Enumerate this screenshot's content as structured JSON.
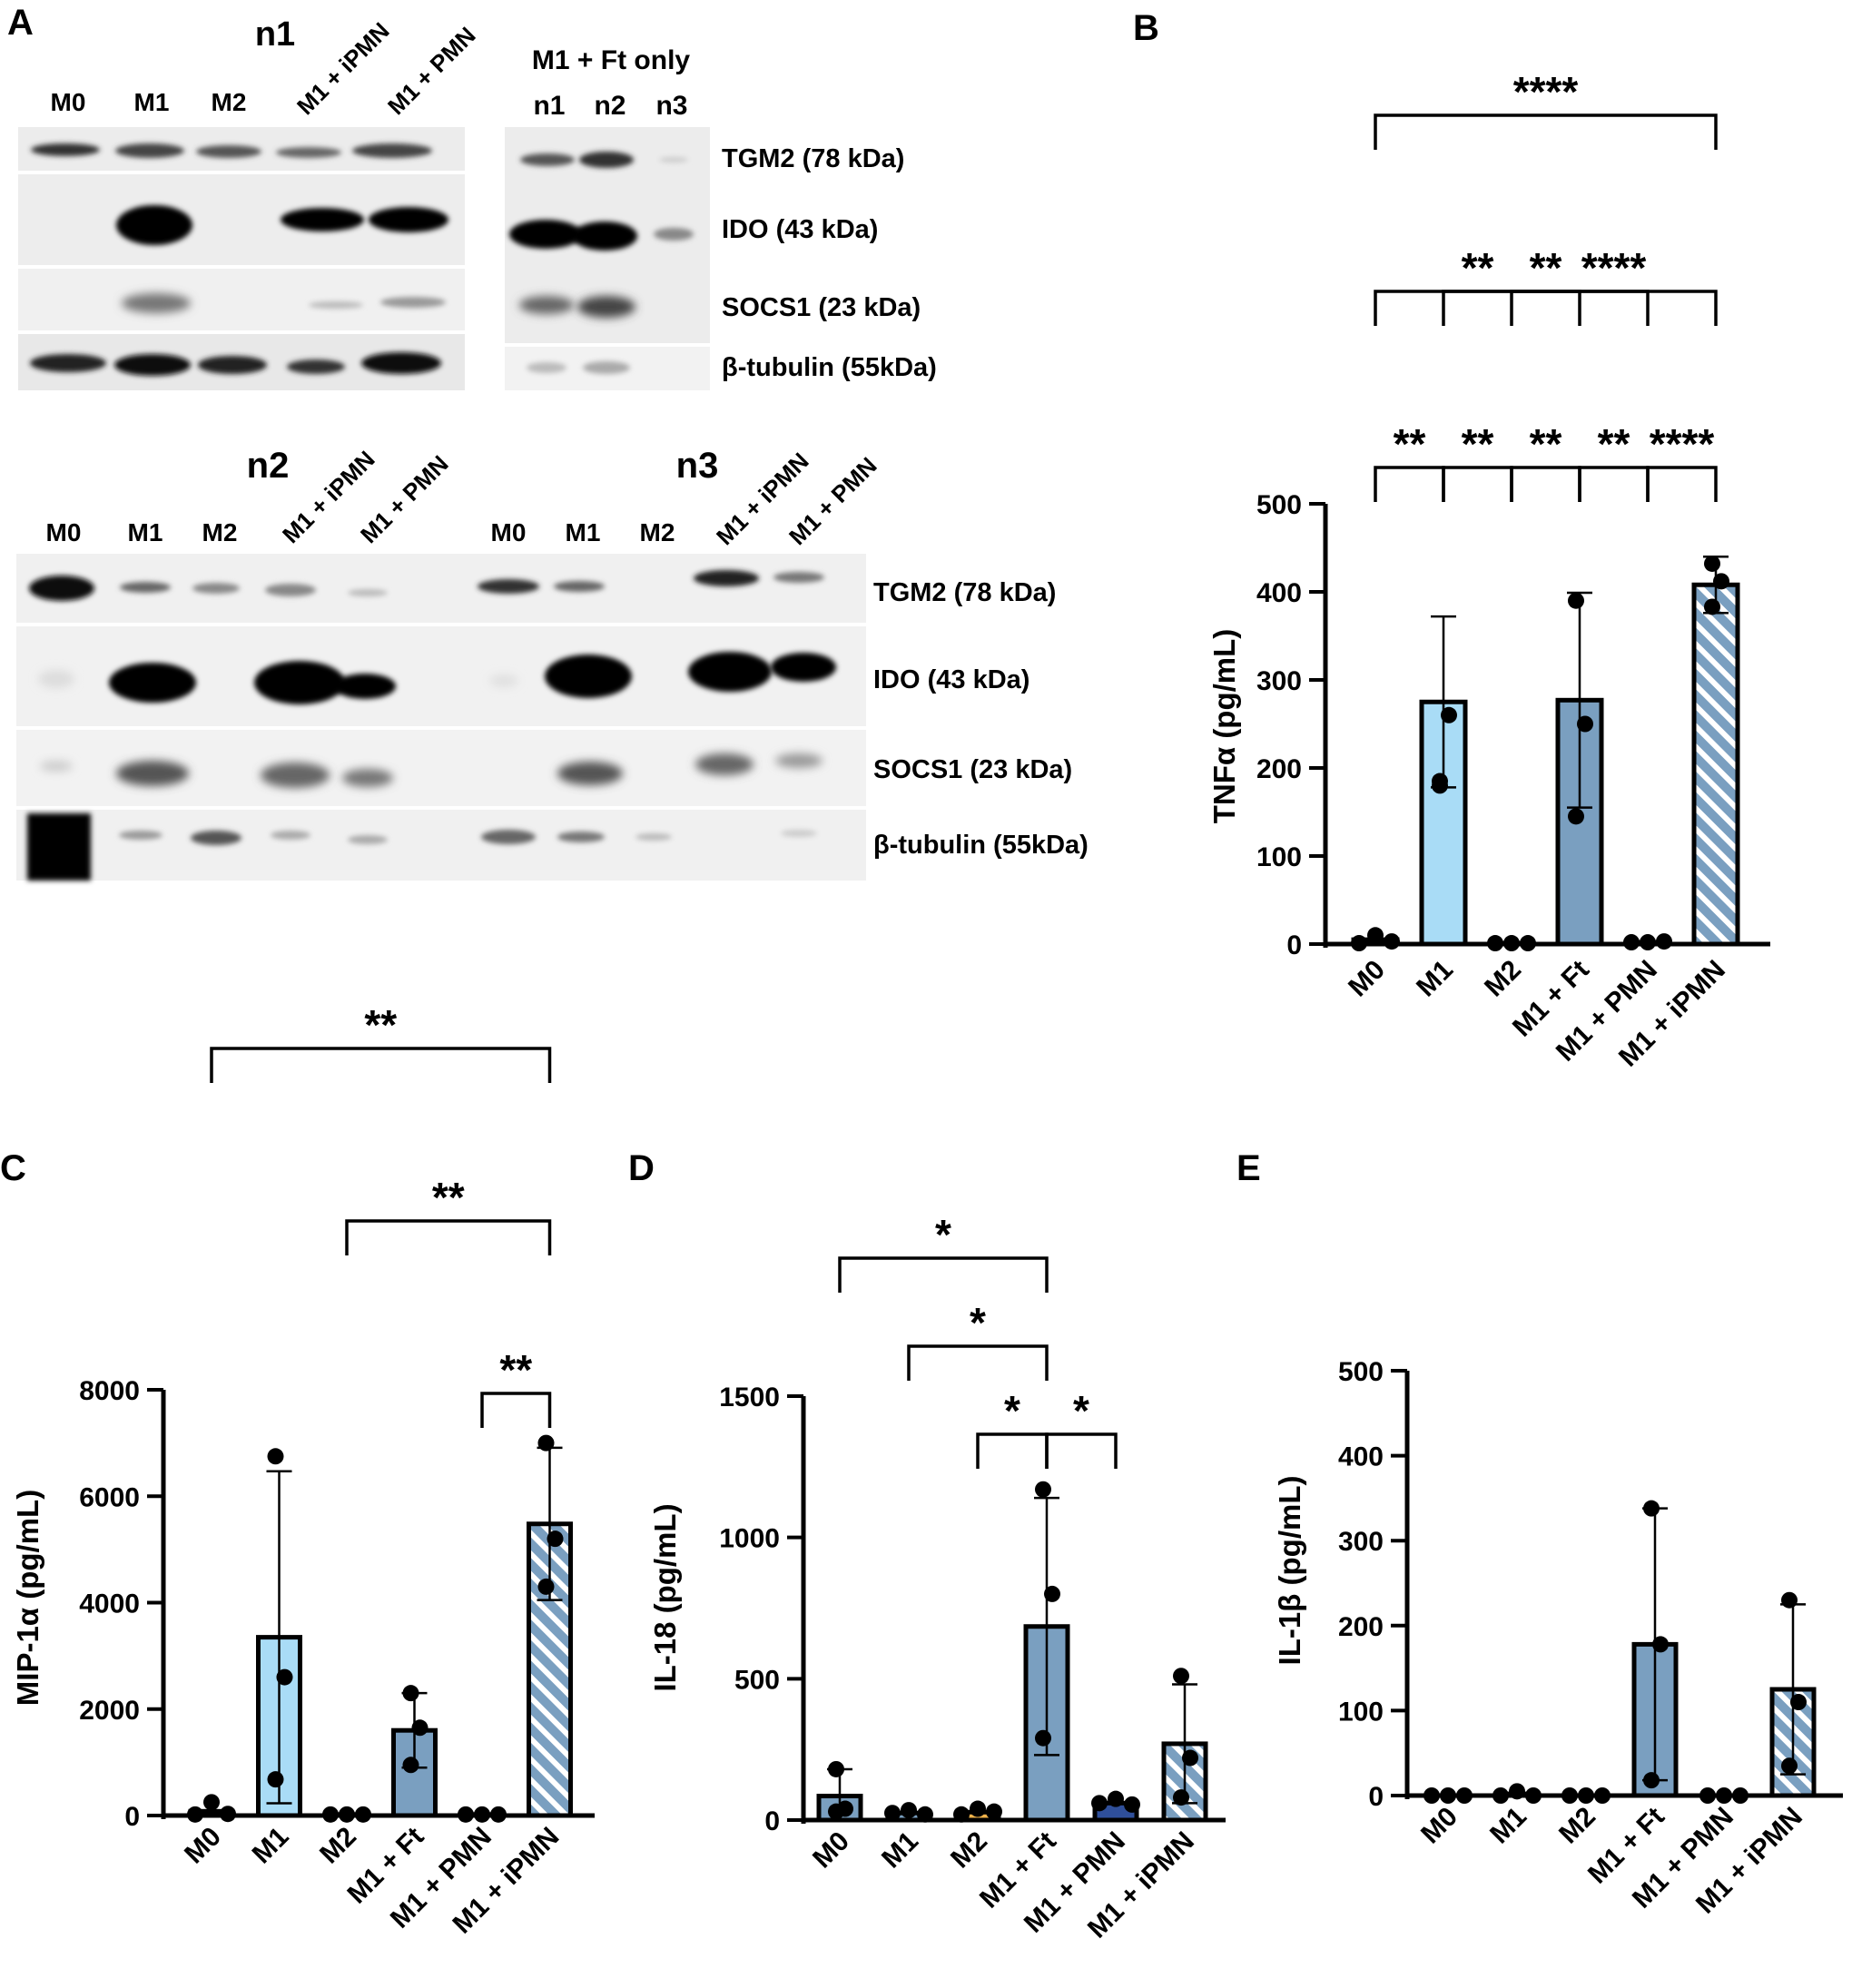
{
  "panels": {
    "A": "A",
    "B": "B",
    "C": "C",
    "D": "D",
    "E": "E"
  },
  "western": {
    "n1": {
      "title": "n1",
      "lanes": [
        "M0",
        "M1",
        "M2",
        "M1 + iPMN",
        "M1 + PMN"
      ],
      "ft_title": "M1 + Ft only",
      "ft_lanes": [
        "n1",
        "n2",
        "n3"
      ]
    },
    "n2": {
      "title": "n2",
      "lanes": [
        "M0",
        "M1",
        "M2",
        "M1 + iPMN",
        "M1 + PMN"
      ]
    },
    "n3": {
      "title": "n3",
      "lanes": [
        "M0",
        "M1",
        "M2",
        "M1 + iPMN",
        "M1 + PMN"
      ]
    },
    "band_labels": [
      "TGM2 (78 kDa)",
      "IDO (43 kDa)",
      "SOCS1 (23 kDa)",
      "β-tubulin (55kDa)"
    ]
  },
  "colors": {
    "light_blue": "#a9dcf6",
    "steel_blue": "#7a9fc0",
    "dark_blue": "#2f4f9a",
    "orange": "#f0b24a",
    "black": "#000000"
  },
  "chart_data": [
    {
      "panel": "B",
      "type": "bar",
      "categories": [
        "M0",
        "M1",
        "M2",
        "M1 + Ft",
        "M1 + PMN",
        "M1 + iPMN"
      ],
      "values": [
        5,
        275,
        1,
        277,
        2,
        408
      ],
      "errors": [
        0,
        97,
        0,
        122,
        0,
        32
      ],
      "points": [
        [
          1,
          10,
          3
        ],
        [
          185,
          260,
          180
        ],
        [
          1,
          1,
          1
        ],
        [
          390,
          250,
          145
        ],
        [
          2,
          2,
          3
        ],
        [
          432,
          412,
          383
        ]
      ],
      "fills": [
        "none",
        "light_blue",
        "none",
        "steel_blue",
        "none",
        "hatched"
      ],
      "ylabel": "TNFα (pg/mL)",
      "ylim": [
        0,
        500
      ],
      "ticks": [
        0,
        100,
        200,
        300,
        400,
        500
      ],
      "significance": [
        {
          "from": 0,
          "to": 1,
          "label": "**"
        },
        {
          "from": 2,
          "to": 3,
          "label": "**"
        },
        {
          "from": 4,
          "to": 5,
          "label": "****"
        },
        {
          "from": 1,
          "to": 2,
          "label": "**"
        },
        {
          "from": 3,
          "to": 4,
          "label": "**"
        },
        {
          "from": 0,
          "to": 3,
          "label": "**"
        },
        {
          "from": 1,
          "to": 4,
          "label": "**"
        },
        {
          "from": 2,
          "to": 5,
          "label": "****"
        },
        {
          "from": 0,
          "to": 5,
          "label": "****"
        }
      ]
    },
    {
      "panel": "C",
      "type": "bar",
      "categories": [
        "M0",
        "M1",
        "M2",
        "M1 + Ft",
        "M1 + PMN",
        "M1 + iPMN"
      ],
      "values": [
        80,
        3350,
        20,
        1600,
        20,
        5480
      ],
      "errors": [
        0,
        3120,
        0,
        700,
        0,
        1430
      ],
      "points": [
        [
          20,
          250,
          30
        ],
        [
          6750,
          2600,
          680
        ],
        [
          20,
          20,
          20
        ],
        [
          2300,
          1650,
          950
        ],
        [
          20,
          20,
          20
        ],
        [
          7000,
          5200,
          4300
        ]
      ],
      "fills": [
        "none",
        "light_blue",
        "none",
        "steel_blue",
        "none",
        "hatched"
      ],
      "ylabel": "MIP-1α (pg/mL)",
      "ylim": [
        0,
        8000
      ],
      "ticks": [
        0,
        2000,
        4000,
        6000,
        8000
      ],
      "significance": [
        {
          "from": 4,
          "to": 5,
          "label": "**"
        },
        {
          "from": 2,
          "to": 5,
          "label": "**"
        },
        {
          "from": 0,
          "to": 5,
          "label": "**"
        }
      ]
    },
    {
      "panel": "D",
      "type": "bar",
      "categories": [
        "M0",
        "M1",
        "M2",
        "M1 + Ft",
        "M1 + PMN",
        "M1 + iPMN"
      ],
      "values": [
        85,
        25,
        28,
        685,
        60,
        270
      ],
      "errors": [
        95,
        0,
        0,
        455,
        0,
        210
      ],
      "points": [
        [
          180,
          40,
          30
        ],
        [
          25,
          35,
          20
        ],
        [
          20,
          40,
          30
        ],
        [
          1170,
          800,
          290
        ],
        [
          60,
          75,
          55
        ],
        [
          510,
          220,
          80
        ]
      ],
      "fills": [
        "steel_blue",
        "steel_blue",
        "orange",
        "steel_blue",
        "dark_blue",
        "hatched"
      ],
      "ylabel": "IL-18 (pg/mL)",
      "ylim": [
        0,
        1500
      ],
      "ticks": [
        0,
        500,
        1000,
        1500
      ],
      "significance": [
        {
          "from": 2,
          "to": 3,
          "label": "*"
        },
        {
          "from": 3,
          "to": 4,
          "label": "*"
        },
        {
          "from": 1,
          "to": 3,
          "label": "*"
        },
        {
          "from": 0,
          "to": 3,
          "label": "*"
        }
      ]
    },
    {
      "panel": "E",
      "type": "bar",
      "categories": [
        "M0",
        "M1",
        "M2",
        "M1 + Ft",
        "M1 + PMN",
        "M1 + iPMN"
      ],
      "values": [
        0,
        2,
        0,
        178,
        0,
        125
      ],
      "errors": [
        0,
        0,
        0,
        160,
        0,
        100
      ],
      "points": [
        [
          0,
          0,
          0
        ],
        [
          0,
          5,
          0
        ],
        [
          0,
          0,
          0
        ],
        [
          338,
          178,
          18
        ],
        [
          0,
          0,
          0
        ],
        [
          230,
          110,
          35
        ]
      ],
      "fills": [
        "none",
        "none",
        "none",
        "steel_blue",
        "none",
        "hatched"
      ],
      "ylabel": "IL-1β (pg/mL)",
      "ylim": [
        0,
        500
      ],
      "ticks": [
        0,
        100,
        200,
        300,
        400,
        500
      ],
      "significance": []
    }
  ]
}
